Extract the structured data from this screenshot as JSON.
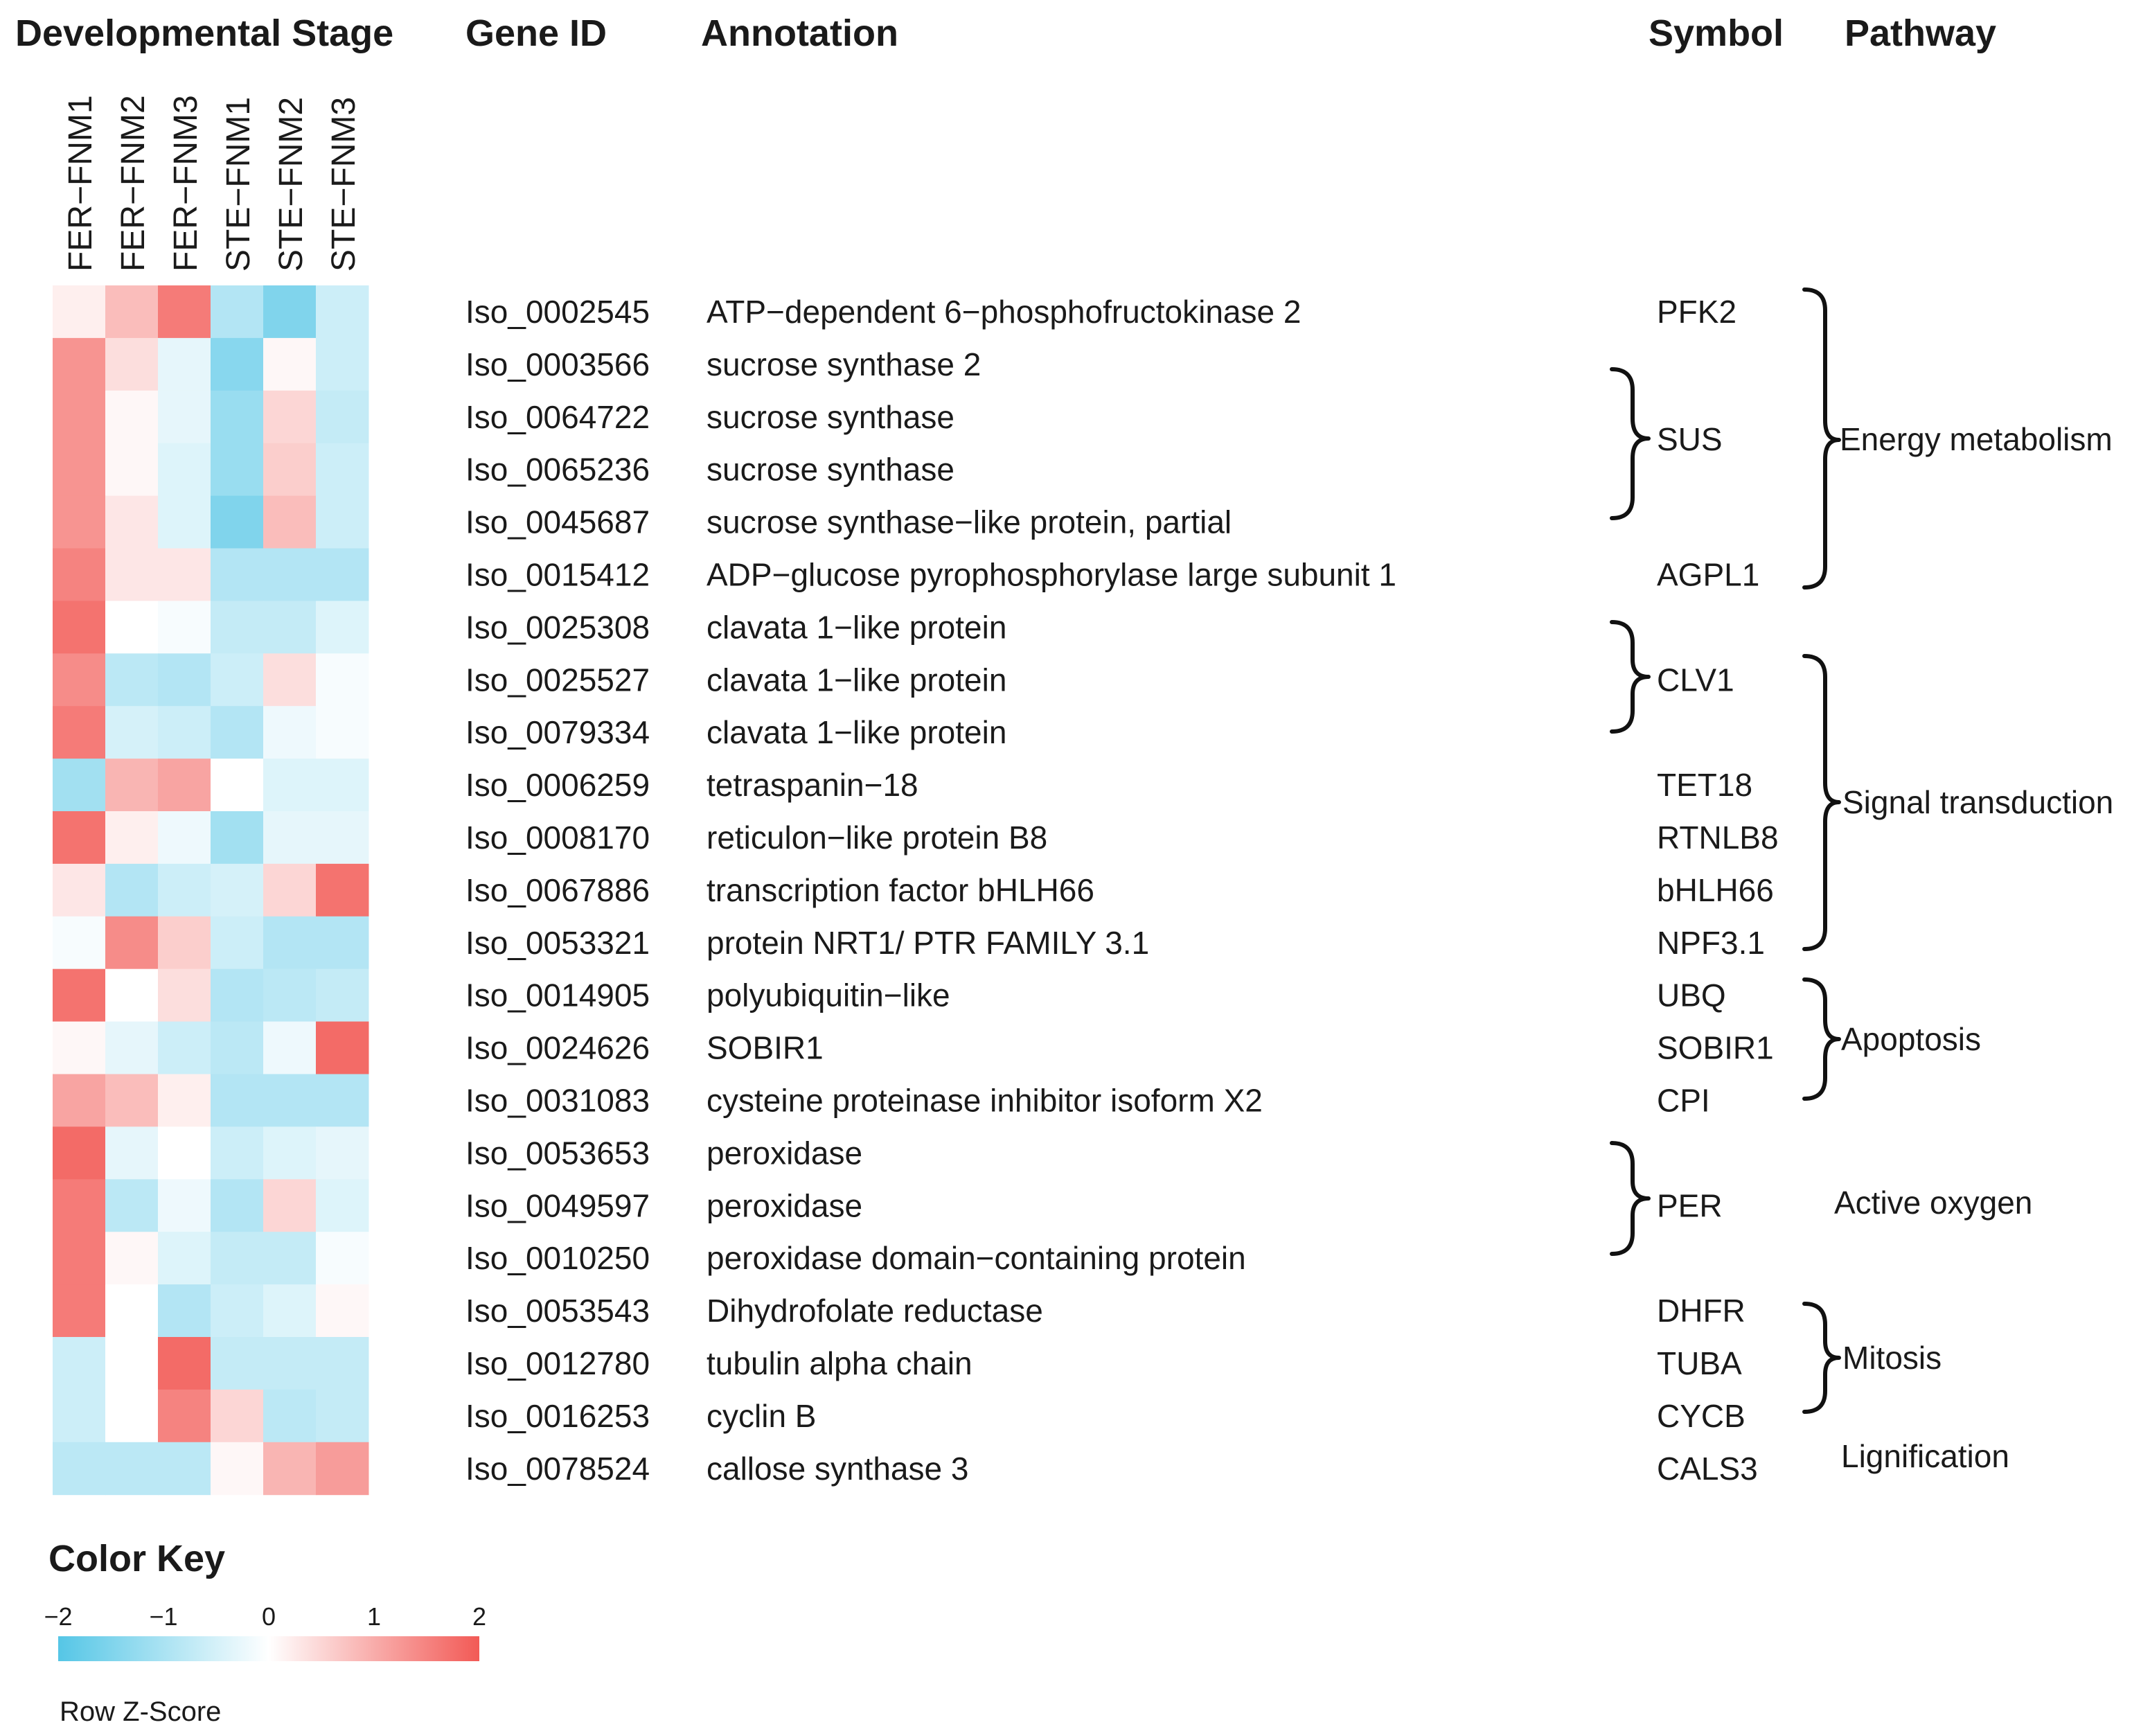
{
  "headers": {
    "stage": "Developmental Stage",
    "gene_id": "Gene ID",
    "annotation": "Annotation",
    "symbol": "Symbol",
    "pathway": "Pathway"
  },
  "chart_data": {
    "type": "heatmap",
    "columns": [
      "FER−FNM1",
      "FER−FNM2",
      "FER−FNM3",
      "STE−FNM1",
      "STE−FNM2",
      "STE−FNM3"
    ],
    "rows": [
      {
        "id": "Iso_0002545",
        "annotation": "ATP−dependent 6−phosphofructokinase 2",
        "symbol": "PFK2",
        "z": [
          0.2,
          0.8,
          1.6,
          -0.9,
          -1.5,
          -0.6
        ]
      },
      {
        "id": "Iso_0003566",
        "annotation": "sucrose synthase 2",
        "symbol": "",
        "z": [
          1.3,
          0.4,
          -0.3,
          -1.4,
          0.1,
          -0.6
        ]
      },
      {
        "id": "Iso_0064722",
        "annotation": "sucrose synthase",
        "symbol": "",
        "z": [
          1.3,
          0.1,
          -0.3,
          -1.2,
          0.5,
          -0.7
        ]
      },
      {
        "id": "Iso_0065236",
        "annotation": "sucrose synthase",
        "symbol": "",
        "z": [
          1.3,
          0.1,
          -0.4,
          -1.2,
          0.6,
          -0.6
        ]
      },
      {
        "id": "Iso_0045687",
        "annotation": "sucrose synthase−like protein, partial",
        "symbol": "",
        "z": [
          1.3,
          0.3,
          -0.4,
          -1.5,
          0.8,
          -0.6
        ]
      },
      {
        "id": "Iso_0015412",
        "annotation": "ADP−glucose pyrophosphorylase large subunit 1",
        "symbol": "AGPL1",
        "z": [
          1.5,
          0.3,
          0.3,
          -0.9,
          -0.9,
          -0.9
        ]
      },
      {
        "id": "Iso_0025308",
        "annotation": "clavata 1−like protein",
        "symbol": "",
        "z": [
          1.7,
          0.0,
          -0.1,
          -0.7,
          -0.7,
          -0.4
        ]
      },
      {
        "id": "Iso_0025527",
        "annotation": "clavata 1−like protein",
        "symbol": "CLV1",
        "z": [
          1.4,
          -0.8,
          -0.9,
          -0.6,
          0.4,
          -0.1
        ]
      },
      {
        "id": "Iso_0079334",
        "annotation": "clavata 1−like protein",
        "symbol": "",
        "z": [
          1.6,
          -0.5,
          -0.6,
          -0.9,
          -0.2,
          -0.1
        ]
      },
      {
        "id": "Iso_0006259",
        "annotation": "tetraspanin−18",
        "symbol": "TET18",
        "z": [
          -1.1,
          0.9,
          1.1,
          0.0,
          -0.4,
          -0.4
        ]
      },
      {
        "id": "Iso_0008170",
        "annotation": "reticulon−like protein B8",
        "symbol": "RTNLB8",
        "z": [
          1.7,
          0.2,
          -0.2,
          -1.1,
          -0.3,
          -0.3
        ]
      },
      {
        "id": "Iso_0067886",
        "annotation": "transcription factor bHLH66",
        "symbol": "bHLH66",
        "z": [
          0.3,
          -0.9,
          -0.6,
          -0.5,
          0.5,
          1.7
        ]
      },
      {
        "id": "Iso_0053321",
        "annotation": "protein NRT1/ PTR FAMILY 3.1",
        "symbol": "NPF3.1",
        "z": [
          -0.1,
          1.4,
          0.6,
          -0.6,
          -0.9,
          -0.9
        ]
      },
      {
        "id": "Iso_0014905",
        "annotation": "polyubiquitin−like",
        "symbol": "UBQ",
        "z": [
          1.7,
          0.0,
          0.4,
          -0.9,
          -0.8,
          -0.7
        ]
      },
      {
        "id": "Iso_0024626",
        "annotation": "SOBIR1",
        "symbol": "SOBIR1",
        "z": [
          0.1,
          -0.3,
          -0.6,
          -0.8,
          -0.2,
          1.8
        ]
      },
      {
        "id": "Iso_0031083",
        "annotation": "cysteine proteinase inhibitor isoform X2",
        "symbol": "CPI",
        "z": [
          1.1,
          0.8,
          0.2,
          -0.9,
          -0.9,
          -0.9
        ]
      },
      {
        "id": "Iso_0053653",
        "annotation": "peroxidase",
        "symbol": "",
        "z": [
          1.8,
          -0.3,
          0.0,
          -0.6,
          -0.4,
          -0.3
        ]
      },
      {
        "id": "Iso_0049597",
        "annotation": "peroxidase",
        "symbol": "PER",
        "z": [
          1.6,
          -0.8,
          -0.2,
          -0.9,
          0.5,
          -0.4
        ]
      },
      {
        "id": "Iso_0010250",
        "annotation": "peroxidase domain−containing protein",
        "symbol": "",
        "z": [
          1.6,
          0.1,
          -0.4,
          -0.7,
          -0.7,
          -0.1
        ]
      },
      {
        "id": "Iso_0053543",
        "annotation": "Dihydrofolate reductase",
        "symbol": "DHFR",
        "z": [
          1.6,
          0.0,
          -0.9,
          -0.6,
          -0.4,
          0.1
        ]
      },
      {
        "id": "Iso_0012780",
        "annotation": "tubulin alpha chain",
        "symbol": "TUBA",
        "z": [
          -0.6,
          0.0,
          1.8,
          -0.7,
          -0.7,
          -0.7
        ]
      },
      {
        "id": "Iso_0016253",
        "annotation": "cyclin B",
        "symbol": "CYCB",
        "z": [
          -0.6,
          0.0,
          1.5,
          0.5,
          -0.8,
          -0.7
        ]
      },
      {
        "id": "Iso_0078524",
        "annotation": "callose synthase 3",
        "symbol": "CALS3",
        "z": [
          -0.8,
          -0.8,
          -0.8,
          0.1,
          0.9,
          1.2
        ]
      }
    ],
    "group_symbols": [
      "SUS"
    ],
    "pathways": [
      "Energy metabolism",
      "Signal transduction",
      "Apoptosis",
      "Active oxygen",
      "Mitosis",
      "Lignification"
    ],
    "color_scale": {
      "low": "#55c6e6",
      "mid": "#ffffff",
      "high": "#f25a56",
      "range": [
        -2,
        2
      ],
      "ticks": [
        "−2",
        "−1",
        "0",
        "1",
        "2"
      ]
    }
  },
  "color_key": {
    "title": "Color Key",
    "label": "Row Z-Score"
  }
}
